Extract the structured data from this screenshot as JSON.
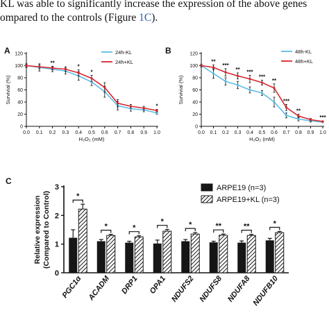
{
  "page_text": {
    "line1": "KL was able to significantly increase the expression of the above genes",
    "line2_pre": "ompared to the controls (Figure ",
    "line2_ref": "1C",
    "line2_post": ")."
  },
  "colors": {
    "blue": "#5bbce4",
    "red": "#d8242e",
    "bar_black": "#161616",
    "page_link": "#2a5db0"
  },
  "chart_data": [
    {
      "panel": "A",
      "type": "line",
      "xlabel": "H₂O₂ (mM)",
      "ylabel": "Survivial (%)",
      "xlim": [
        0,
        1.0
      ],
      "ylim": [
        0,
        120
      ],
      "x_ticks": [
        "0.0",
        "0.1",
        "0.2",
        "0.3",
        "0.4",
        "0.5",
        "0.6",
        "0.7",
        "0.8",
        "0.9",
        "1.0"
      ],
      "y_ticks": [
        "0",
        "20",
        "40",
        "60",
        "80",
        "100",
        "120"
      ],
      "x": [
        0,
        0.1,
        0.2,
        0.3,
        0.4,
        0.5,
        0.6,
        0.7,
        0.8,
        0.9,
        1.0
      ],
      "series": [
        {
          "name": "24h-KL",
          "color": "#5bbce4",
          "values": [
            100,
            97,
            94,
            91,
            83,
            73,
            57,
            34,
            29,
            27,
            22
          ],
          "errors": [
            3,
            6,
            4,
            5,
            7,
            6,
            9,
            7,
            4,
            3,
            2
          ]
        },
        {
          "name": "24h+KL",
          "color": "#d8242e",
          "values": [
            100,
            98,
            96,
            94,
            88,
            79,
            64,
            38,
            33,
            30,
            26
          ],
          "errors": [
            2,
            3,
            3,
            4,
            5,
            5,
            8,
            6,
            3,
            3,
            2
          ]
        }
      ],
      "significance": [
        {
          "x": 0.2,
          "label": "**"
        },
        {
          "x": 0.4,
          "label": "*"
        },
        {
          "x": 0.5,
          "label": "*"
        },
        {
          "x": 1.0,
          "label": "*"
        }
      ],
      "legend": "top-right",
      "grid": false
    },
    {
      "panel": "B",
      "type": "line",
      "xlabel": "H₂O₂ (mM)",
      "ylabel": "Survivial (%)",
      "xlim": [
        0,
        1.0
      ],
      "ylim": [
        0,
        120
      ],
      "x_ticks": [
        "0.0",
        "0.1",
        "0.2",
        "0.3",
        "0.4",
        "0.5",
        "0.6",
        "0.7",
        "0.8",
        "0.9",
        "1.0"
      ],
      "y_ticks": [
        "0",
        "20",
        "40",
        "60",
        "80",
        "100",
        "120"
      ],
      "x": [
        0,
        0.1,
        0.2,
        0.3,
        0.4,
        0.5,
        0.6,
        0.7,
        0.8,
        0.9,
        1.0
      ],
      "series": [
        {
          "name": "48h-KL",
          "color": "#5bbce4",
          "values": [
            100,
            87,
            74,
            68,
            60,
            55,
            40,
            18,
            12,
            9,
            7
          ],
          "errors": [
            2,
            8,
            6,
            6,
            5,
            4,
            8,
            4,
            3,
            2,
            1
          ]
        },
        {
          "name": "48h+KL",
          "color": "#d8242e",
          "values": [
            100,
            97,
            89,
            83,
            78,
            72,
            63,
            31,
            17,
            11,
            8
          ],
          "errors": [
            2,
            4,
            6,
            5,
            6,
            4,
            7,
            5,
            3,
            2,
            1
          ]
        }
      ],
      "significance": [
        {
          "x": 0.1,
          "label": "**"
        },
        {
          "x": 0.2,
          "label": "***"
        },
        {
          "x": 0.3,
          "label": "**"
        },
        {
          "x": 0.4,
          "label": "***"
        },
        {
          "x": 0.5,
          "label": "***"
        },
        {
          "x": 0.6,
          "label": "**"
        },
        {
          "x": 0.7,
          "label": "***"
        },
        {
          "x": 0.8,
          "label": "**"
        },
        {
          "x": 1.0,
          "label": "***"
        }
      ],
      "legend": "top-right",
      "grid": false
    },
    {
      "panel": "C",
      "type": "bar",
      "ylabel_lines": [
        "Relative expression",
        "(Compared to Control)"
      ],
      "ylim": [
        0,
        3
      ],
      "y_ticks": [
        "0",
        "1",
        "2",
        "3"
      ],
      "categories": [
        "PGC1α",
        "ACADM",
        "DRP1",
        "OPA1",
        "NDUFS2",
        "NDUFS8",
        "NDUFA8",
        "NDUFB10"
      ],
      "series": [
        {
          "name": "ARPE19 (n=3)",
          "fill": "solid",
          "values": [
            1.22,
            1.1,
            1.05,
            1.02,
            1.1,
            1.06,
            1.05,
            1.13
          ],
          "errors": [
            0.28,
            0.06,
            0.05,
            0.12,
            0.06,
            0.04,
            0.06,
            0.07
          ]
        },
        {
          "name": "ARPE19+KL (n=3)",
          "fill": "hatched",
          "values": [
            2.22,
            1.3,
            1.25,
            1.45,
            1.35,
            1.31,
            1.3,
            1.4
          ],
          "errors": [
            0.17,
            0.04,
            0.04,
            0.06,
            0.05,
            0.04,
            0.04,
            0.04
          ]
        }
      ],
      "significance": [
        "*",
        "*",
        "*",
        "*",
        "*",
        "**",
        "**",
        "*"
      ],
      "legend": "top-right"
    }
  ]
}
